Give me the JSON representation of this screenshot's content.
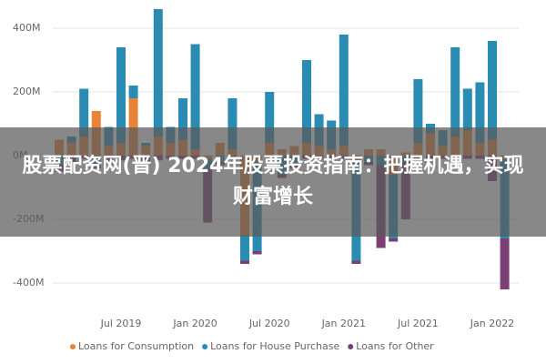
{
  "chart_data": {
    "type": "stacked_bar",
    "categories": [
      null,
      null,
      null,
      null,
      null,
      "Jul 2019",
      null,
      null,
      null,
      null,
      null,
      "Jan 2020",
      null,
      null,
      null,
      null,
      null,
      "Jul 2020",
      null,
      null,
      null,
      null,
      null,
      "Jan 2021",
      null,
      null,
      null,
      null,
      null,
      "Jul 2021",
      null,
      null,
      null,
      null,
      null,
      "Jan 2022",
      null
    ],
    "series": [
      {
        "name": "Loans for Consumption",
        "color": "#e8833a",
        "values": [
          50,
          40,
          60,
          140,
          30,
          40,
          180,
          30,
          60,
          40,
          50,
          20,
          -10,
          40,
          20,
          -250,
          -20,
          40,
          20,
          30,
          40,
          30,
          20,
          30,
          -20,
          20,
          20,
          -60,
          10,
          40,
          70,
          30,
          60,
          80,
          40,
          50,
          -10
        ]
      },
      {
        "name": "Loans for House Purchase",
        "color": "#2b8cb3",
        "values": [
          -30,
          20,
          150,
          -30,
          60,
          300,
          40,
          10,
          400,
          50,
          130,
          330,
          -30,
          -20,
          160,
          -80,
          -280,
          160,
          -60,
          -30,
          260,
          100,
          90,
          350,
          -310,
          -20,
          -30,
          -200,
          -20,
          200,
          30,
          50,
          280,
          130,
          190,
          310,
          -250
        ]
      },
      {
        "name": "Loans for Other",
        "color": "#7b3f73",
        "values": [
          -20,
          -20,
          -10,
          -10,
          -20,
          -15,
          -10,
          -20,
          -15,
          -10,
          -10,
          -10,
          -170,
          -10,
          -10,
          -10,
          -10,
          -10,
          -10,
          -10,
          -10,
          -10,
          -10,
          -10,
          -10,
          -10,
          -260,
          -10,
          -180,
          -10,
          -10,
          -10,
          -10,
          -10,
          -10,
          -80,
          -160
        ]
      }
    ],
    "ylim": [
      -450,
      470
    ],
    "yticks": [
      {
        "value": 400,
        "label": "400M"
      },
      {
        "value": 200,
        "label": "200M"
      },
      {
        "value": 0,
        "label": "0M"
      },
      {
        "value": -200,
        "label": "-200M"
      },
      {
        "value": -400,
        "label": "-400M"
      }
    ],
    "grid": true
  },
  "banner": {
    "text": "股票配资网(晋) 2024年股票投资指南：把握机遇，实现财富增长"
  }
}
